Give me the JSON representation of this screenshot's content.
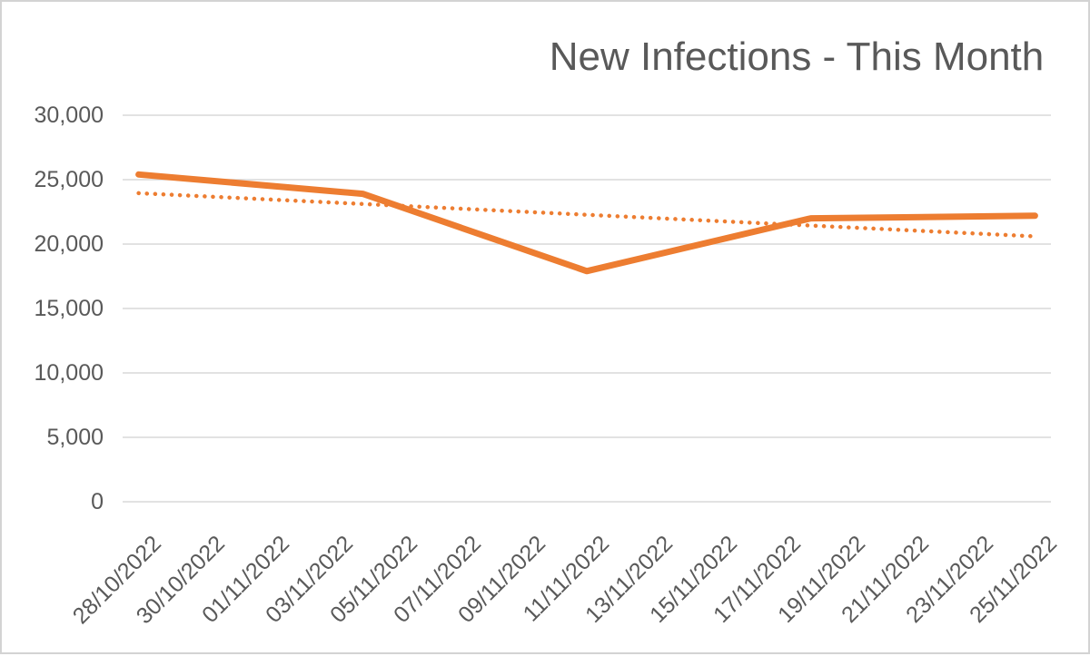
{
  "window": {
    "background": "#FFFFFF",
    "border_color": "#D3D3D3"
  },
  "chart_data": {
    "type": "line",
    "title": "New Infections - This Month",
    "title_color": "#595959",
    "accent_color": "#ED7D31",
    "gridline_color": "#D9D9D9",
    "axis_text_color": "#595959",
    "grid": true,
    "legend": "none",
    "y_axis": {
      "min": 0,
      "max": 30000,
      "tick_interval": 5000,
      "tick_labels": [
        "30,000",
        "25,000",
        "20,000",
        "15,000",
        "10,000",
        "5,000",
        "0"
      ]
    },
    "x_axis": {
      "start_date": "28/10/2022",
      "daily_categories": 29,
      "label_every_n_days": 2,
      "tick_labels": [
        "28/10/2022",
        "30/10/2022",
        "01/11/2022",
        "03/11/2022",
        "05/11/2022",
        "07/11/2022",
        "09/11/2022",
        "11/11/2022",
        "13/11/2022",
        "15/11/2022",
        "17/11/2022",
        "19/11/2022",
        "21/11/2022",
        "23/11/2022",
        "25/11/2022"
      ]
    },
    "series": [
      {
        "name": "new-infections",
        "style": "solid",
        "color": "#ED7D31",
        "points": [
          {
            "date": "28/10/2022",
            "value": 25400
          },
          {
            "date": "04/11/2022",
            "value": 23900
          },
          {
            "date": "11/11/2022",
            "value": 17900
          },
          {
            "date": "18/11/2022",
            "value": 22000
          },
          {
            "date": "25/11/2022",
            "value": 22200
          }
        ]
      },
      {
        "name": "linear-trendline",
        "style": "dotted",
        "color": "#ED7D31",
        "points": [
          {
            "date": "28/10/2022",
            "value": 23950
          },
          {
            "date": "25/11/2022",
            "value": 20600
          }
        ]
      }
    ]
  }
}
